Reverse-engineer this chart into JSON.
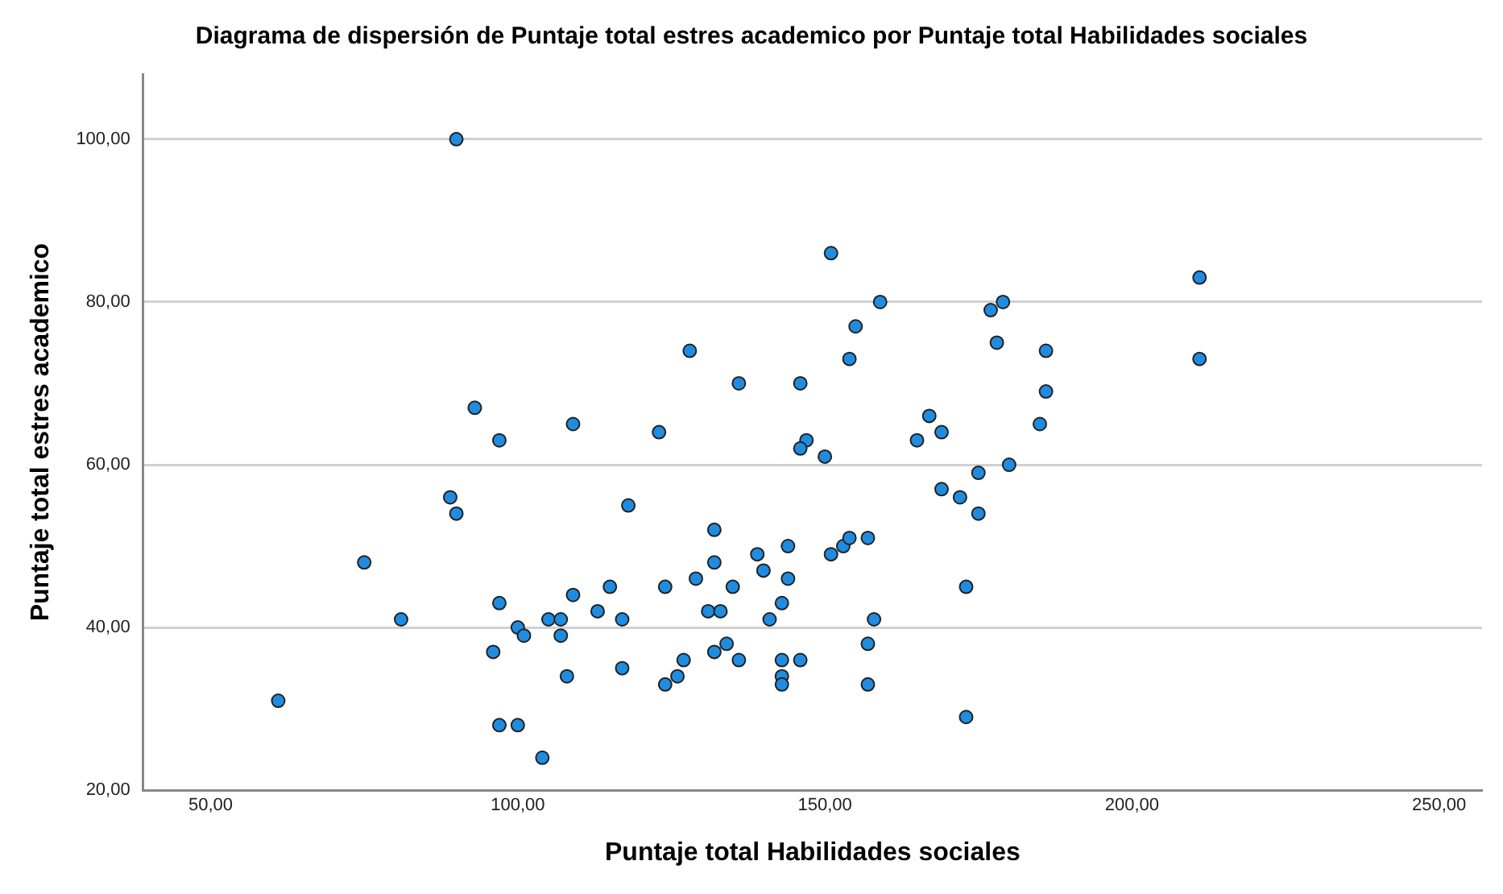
{
  "chart_data": {
    "type": "scatter",
    "title": "Diagrama de dispersión de Puntaje total estres academico por Puntaje total Habilidades sociales",
    "xlabel": "Puntaje total Habilidades sociales",
    "ylabel": "Puntaje total estres academico",
    "xlim": [
      39,
      257
    ],
    "ylim": [
      20,
      108
    ],
    "xticks": [
      {
        "value": 50,
        "label": "50,00"
      },
      {
        "value": 100,
        "label": "100,00"
      },
      {
        "value": 150,
        "label": "150,00"
      },
      {
        "value": 200,
        "label": "200,00"
      },
      {
        "value": 250,
        "label": "250,00"
      }
    ],
    "yticks": [
      {
        "value": 20,
        "label": "20,00"
      },
      {
        "value": 40,
        "label": "40,00"
      },
      {
        "value": 60,
        "label": "60,00"
      },
      {
        "value": 80,
        "label": "80,00"
      },
      {
        "value": 100,
        "label": "100,00"
      }
    ],
    "grid": "y",
    "marker": "circle",
    "series": [
      {
        "color": "#1f8ce0",
        "x": [
          90,
          93,
          97,
          109,
          151,
          159,
          177,
          179,
          155,
          178,
          186,
          128,
          186,
          154,
          136,
          146,
          167,
          185,
          123,
          147,
          146,
          165,
          169,
          211,
          211,
          89,
          90,
          75,
          81,
          97,
          100,
          101,
          96,
          105,
          107,
          107,
          109,
          113,
          108,
          61,
          97,
          100,
          104,
          118,
          132,
          132,
          139,
          140,
          144,
          144,
          129,
          135,
          124,
          115,
          117,
          131,
          133,
          143,
          141,
          151,
          153,
          154,
          157,
          158,
          173,
          169,
          172,
          175,
          180,
          175,
          157,
          157,
          173,
          117,
          127,
          124,
          126,
          132,
          134,
          136,
          143,
          143,
          143,
          146,
          150
        ],
        "values": [
          100,
          67,
          63,
          65,
          86,
          80,
          79,
          80,
          77,
          75,
          74,
          74,
          69,
          73,
          70,
          70,
          66,
          65,
          64,
          63,
          62,
          63,
          64,
          83,
          73,
          56,
          54,
          48,
          41,
          43,
          40,
          39,
          37,
          41,
          41,
          39,
          44,
          42,
          34,
          31,
          28,
          28,
          24,
          55,
          52,
          48,
          49,
          47,
          50,
          46,
          46,
          45,
          45,
          45,
          41,
          42,
          42,
          43,
          41,
          49,
          50,
          51,
          51,
          41,
          45,
          57,
          56,
          59,
          60,
          54,
          38,
          33,
          29,
          35,
          36,
          33,
          34,
          37,
          38,
          36,
          36,
          34,
          33,
          36,
          61
        ]
      }
    ]
  }
}
